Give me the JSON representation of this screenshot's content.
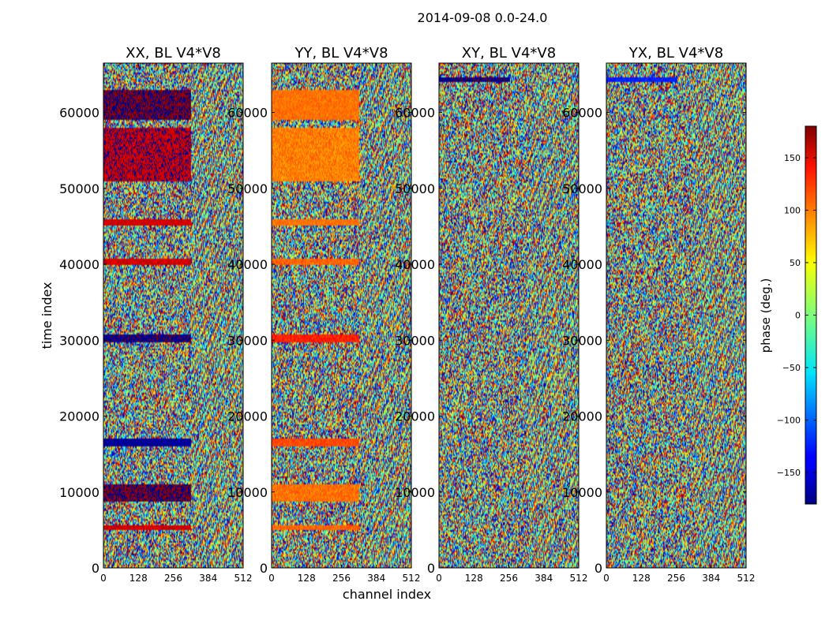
{
  "figure": {
    "suptitle": "2014-09-08 0.0-24.0"
  },
  "chart_data": {
    "type": "heatmap",
    "title": "2014-09-08 0.0-24.0",
    "xlabel": "channel index",
    "ylabel": "time index",
    "xlim": [
      0,
      512
    ],
    "ylim": [
      0,
      66500
    ],
    "x_ticks": [
      0,
      128,
      256,
      384,
      512
    ],
    "y_ticks": [
      0,
      10000,
      20000,
      30000,
      40000,
      50000,
      60000
    ],
    "x_tick_labels": [
      "0",
      "128",
      "256",
      "384",
      "512"
    ],
    "y_tick_labels": [
      "0",
      "10000",
      "20000",
      "30000",
      "40000",
      "50000",
      "60000"
    ],
    "panels": [
      {
        "title": "XX, BL V4*V8",
        "bands": [
          {
            "y0": 59000,
            "y1": 63000,
            "x0": 0,
            "x1": 320,
            "phase": 175,
            "noise": 10,
            "alt": -175
          },
          {
            "y0": 51000,
            "y1": 58000,
            "x0": 0,
            "x1": 320,
            "phase": 150,
            "noise": 12,
            "alt": -175
          },
          {
            "y0": 45000,
            "y1": 46000,
            "x0": 0,
            "x1": 320,
            "phase": 150,
            "noise": 10
          },
          {
            "y0": 40000,
            "y1": 40700,
            "x0": 0,
            "x1": 320,
            "phase": 150,
            "noise": 15
          },
          {
            "y0": 29800,
            "y1": 30800,
            "x0": 0,
            "x1": 320,
            "phase": -175,
            "noise": 10
          },
          {
            "y0": 16000,
            "y1": 17000,
            "x0": 0,
            "x1": 320,
            "phase": -170,
            "noise": 10
          },
          {
            "y0": 8800,
            "y1": 11000,
            "x0": 0,
            "x1": 320,
            "phase": 175,
            "noise": 10,
            "alt": -175
          },
          {
            "y0": 5000,
            "y1": 5600,
            "x0": 0,
            "x1": 320,
            "phase": 150,
            "noise": 15
          }
        ]
      },
      {
        "title": "YY, BL V4*V8",
        "bands": [
          {
            "y0": 59000,
            "y1": 63000,
            "x0": 0,
            "x1": 320,
            "phase": 95,
            "noise": 12
          },
          {
            "y0": 51000,
            "y1": 58000,
            "x0": 0,
            "x1": 320,
            "phase": 90,
            "noise": 18
          },
          {
            "y0": 45000,
            "y1": 46000,
            "x0": 0,
            "x1": 320,
            "phase": 95,
            "noise": 10
          },
          {
            "y0": 40000,
            "y1": 40700,
            "x0": 0,
            "x1": 320,
            "phase": 100,
            "noise": 15
          },
          {
            "y0": 29800,
            "y1": 30800,
            "x0": 0,
            "x1": 320,
            "phase": 125,
            "noise": 15
          },
          {
            "y0": 16000,
            "y1": 17000,
            "x0": 0,
            "x1": 320,
            "phase": 110,
            "noise": 12
          },
          {
            "y0": 8800,
            "y1": 11000,
            "x0": 0,
            "x1": 320,
            "phase": 95,
            "noise": 15
          },
          {
            "y0": 5000,
            "y1": 5600,
            "x0": 0,
            "x1": 320,
            "phase": 100,
            "noise": 15
          }
        ]
      },
      {
        "title": "XY, BL V4*V8",
        "bands": [
          {
            "y0": 64000,
            "y1": 64700,
            "x0": 0,
            "x1": 260,
            "phase": -175,
            "noise": 8
          }
        ]
      },
      {
        "title": "YX, BL V4*V8",
        "bands": [
          {
            "y0": 64000,
            "y1": 64700,
            "x0": 0,
            "x1": 260,
            "phase": -125,
            "noise": 10
          }
        ]
      }
    ],
    "colorbar": {
      "label": "phase (deg.)",
      "range": [
        -180,
        180
      ],
      "ticks": [
        -150,
        -100,
        -50,
        0,
        50,
        100,
        150
      ],
      "tick_labels": [
        "−150",
        "−100",
        "−50",
        "0",
        "50",
        "100",
        "150"
      ],
      "colormap": "jet"
    }
  }
}
